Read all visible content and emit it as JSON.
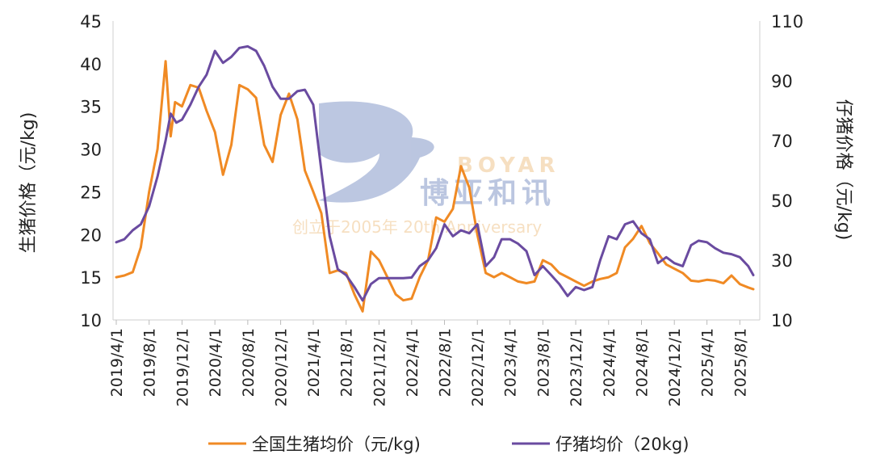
{
  "chart_data": {
    "type": "line",
    "x_start": "2019/4/1",
    "x_end": "2025/9/20",
    "x_ticks": [
      "2019/4/1",
      "2019/8/1",
      "2019/12/1",
      "2020/4/1",
      "2020/8/1",
      "2020/12/1",
      "2021/4/1",
      "2021/8/1",
      "2021/12/1",
      "2022/4/1",
      "2022/8/1",
      "2022/12/1",
      "2023/4/1",
      "2023/8/1",
      "2023/12/1",
      "2024/4/1",
      "2024/8/1",
      "2024/12/1",
      "2025/4/1",
      "2025/8/1"
    ],
    "y_left": {
      "label": "生猪价格（元/kg)",
      "lim": [
        10,
        45
      ],
      "ticks": [
        10,
        15,
        20,
        25,
        30,
        35,
        40,
        45
      ]
    },
    "y_right": {
      "label": "仔猪价格（元/kg)",
      "lim": [
        10,
        110
      ],
      "ticks": [
        10,
        30,
        50,
        70,
        90,
        110
      ]
    },
    "grid": false,
    "legend_position": "bottom",
    "series": [
      {
        "name": "全国生猪均价（元/kg)",
        "axis": "left",
        "color": "#f08a24",
        "points": [
          [
            "2019/4/1",
            15.0
          ],
          [
            "2019/5/1",
            15.2
          ],
          [
            "2019/6/1",
            15.6
          ],
          [
            "2019/7/1",
            18.5
          ],
          [
            "2019/8/1",
            25.0
          ],
          [
            "2019/9/1",
            30.0
          ],
          [
            "2019/10/1",
            40.3
          ],
          [
            "2019/10/20",
            31.5
          ],
          [
            "2019/11/5",
            35.5
          ],
          [
            "2019/12/1",
            35.0
          ],
          [
            "2020/1/1",
            37.5
          ],
          [
            "2020/2/1",
            37.2
          ],
          [
            "2020/3/1",
            34.5
          ],
          [
            "2020/4/1",
            32.0
          ],
          [
            "2020/5/1",
            27.0
          ],
          [
            "2020/6/1",
            30.5
          ],
          [
            "2020/7/1",
            37.5
          ],
          [
            "2020/8/1",
            37.0
          ],
          [
            "2020/9/1",
            36.0
          ],
          [
            "2020/10/1",
            30.5
          ],
          [
            "2020/11/1",
            28.5
          ],
          [
            "2020/12/1",
            34.0
          ],
          [
            "2021/1/1",
            36.5
          ],
          [
            "2021/2/1",
            33.5
          ],
          [
            "2021/3/1",
            27.5
          ],
          [
            "2021/4/1",
            25.0
          ],
          [
            "2021/5/1",
            22.5
          ],
          [
            "2021/6/1",
            15.5
          ],
          [
            "2021/7/1",
            15.8
          ],
          [
            "2021/8/1",
            15.5
          ],
          [
            "2021/9/1",
            13.0
          ],
          [
            "2021/10/1",
            11.0
          ],
          [
            "2021/11/1",
            18.0
          ],
          [
            "2021/12/1",
            17.0
          ],
          [
            "2022/1/1",
            15.0
          ],
          [
            "2022/2/1",
            13.0
          ],
          [
            "2022/3/1",
            12.3
          ],
          [
            "2022/4/1",
            12.5
          ],
          [
            "2022/5/1",
            15.0
          ],
          [
            "2022/6/1",
            17.0
          ],
          [
            "2022/7/1",
            22.0
          ],
          [
            "2022/8/1",
            21.5
          ],
          [
            "2022/9/1",
            23.0
          ],
          [
            "2022/10/1",
            28.0
          ],
          [
            "2022/11/1",
            25.5
          ],
          [
            "2022/12/1",
            20.0
          ],
          [
            "2023/1/1",
            15.5
          ],
          [
            "2023/2/1",
            15.0
          ],
          [
            "2023/3/1",
            15.5
          ],
          [
            "2023/4/1",
            15.0
          ],
          [
            "2023/5/1",
            14.5
          ],
          [
            "2023/6/1",
            14.3
          ],
          [
            "2023/7/1",
            14.5
          ],
          [
            "2023/8/1",
            17.0
          ],
          [
            "2023/9/1",
            16.5
          ],
          [
            "2023/10/1",
            15.5
          ],
          [
            "2023/11/1",
            15.0
          ],
          [
            "2023/12/1",
            14.5
          ],
          [
            "2024/1/1",
            14.0
          ],
          [
            "2024/2/1",
            14.5
          ],
          [
            "2024/3/1",
            14.8
          ],
          [
            "2024/4/1",
            15.0
          ],
          [
            "2024/5/1",
            15.5
          ],
          [
            "2024/6/1",
            18.5
          ],
          [
            "2024/7/1",
            19.5
          ],
          [
            "2024/8/1",
            21.0
          ],
          [
            "2024/9/1",
            19.0
          ],
          [
            "2024/10/1",
            17.8
          ],
          [
            "2024/11/1",
            16.5
          ],
          [
            "2024/12/1",
            16.0
          ],
          [
            "2025/1/1",
            15.5
          ],
          [
            "2025/2/1",
            14.6
          ],
          [
            "2025/3/1",
            14.5
          ],
          [
            "2025/4/1",
            14.7
          ],
          [
            "2025/5/1",
            14.6
          ],
          [
            "2025/6/1",
            14.3
          ],
          [
            "2025/7/1",
            15.2
          ],
          [
            "2025/8/1",
            14.2
          ],
          [
            "2025/9/1",
            13.8
          ],
          [
            "2025/9/20",
            13.6
          ]
        ]
      },
      {
        "name": "仔猪均价（20kg)",
        "axis": "right",
        "color": "#6a4ba0",
        "points": [
          [
            "2019/4/1",
            36.0
          ],
          [
            "2019/5/1",
            37.0
          ],
          [
            "2019/6/1",
            40.0
          ],
          [
            "2019/7/1",
            42.0
          ],
          [
            "2019/8/1",
            48.0
          ],
          [
            "2019/9/1",
            58.0
          ],
          [
            "2019/10/1",
            70.0
          ],
          [
            "2019/10/20",
            79.0
          ],
          [
            "2019/11/10",
            76.0
          ],
          [
            "2019/12/1",
            77.0
          ],
          [
            "2020/1/1",
            82.0
          ],
          [
            "2020/2/1",
            88.0
          ],
          [
            "2020/3/1",
            92.0
          ],
          [
            "2020/4/1",
            100.0
          ],
          [
            "2020/5/1",
            96.0
          ],
          [
            "2020/6/1",
            98.0
          ],
          [
            "2020/7/1",
            101.0
          ],
          [
            "2020/8/1",
            101.5
          ],
          [
            "2020/9/1",
            100.0
          ],
          [
            "2020/10/1",
            95.0
          ],
          [
            "2020/11/1",
            88.0
          ],
          [
            "2020/12/1",
            84.0
          ],
          [
            "2021/1/1",
            84.0
          ],
          [
            "2021/2/1",
            86.5
          ],
          [
            "2021/3/1",
            87.0
          ],
          [
            "2021/4/1",
            82.0
          ],
          [
            "2021/5/1",
            60.0
          ],
          [
            "2021/6/1",
            38.0
          ],
          [
            "2021/7/1",
            27.0
          ],
          [
            "2021/8/1",
            25.0
          ],
          [
            "2021/9/1",
            21.0
          ],
          [
            "2021/10/1",
            16.5
          ],
          [
            "2021/11/1",
            22.0
          ],
          [
            "2021/12/1",
            24.0
          ],
          [
            "2022/1/1",
            24.0
          ],
          [
            "2022/2/1",
            24.0
          ],
          [
            "2022/3/1",
            24.0
          ],
          [
            "2022/4/1",
            24.2
          ],
          [
            "2022/5/1",
            28.0
          ],
          [
            "2022/6/1",
            30.0
          ],
          [
            "2022/7/1",
            34.0
          ],
          [
            "2022/8/1",
            42.0
          ],
          [
            "2022/9/1",
            38.0
          ],
          [
            "2022/10/1",
            40.0
          ],
          [
            "2022/11/1",
            39.0
          ],
          [
            "2022/12/1",
            42.0
          ],
          [
            "2023/1/1",
            28.0
          ],
          [
            "2023/2/1",
            31.0
          ],
          [
            "2023/3/1",
            37.0
          ],
          [
            "2023/4/1",
            37.0
          ],
          [
            "2023/5/1",
            35.5
          ],
          [
            "2023/6/1",
            33.0
          ],
          [
            "2023/7/1",
            25.0
          ],
          [
            "2023/8/1",
            28.0
          ],
          [
            "2023/9/1",
            25.0
          ],
          [
            "2023/10/1",
            22.0
          ],
          [
            "2023/11/1",
            18.0
          ],
          [
            "2023/12/1",
            21.0
          ],
          [
            "2024/1/1",
            20.0
          ],
          [
            "2024/2/1",
            21.0
          ],
          [
            "2024/3/1",
            30.0
          ],
          [
            "2024/4/1",
            38.0
          ],
          [
            "2024/5/1",
            37.0
          ],
          [
            "2024/6/1",
            42.0
          ],
          [
            "2024/7/1",
            43.0
          ],
          [
            "2024/8/1",
            39.0
          ],
          [
            "2024/9/1",
            37.0
          ],
          [
            "2024/10/1",
            29.0
          ],
          [
            "2024/11/1",
            31.0
          ],
          [
            "2024/12/1",
            29.0
          ],
          [
            "2025/1/1",
            28.0
          ],
          [
            "2025/2/1",
            35.0
          ],
          [
            "2025/3/1",
            36.5
          ],
          [
            "2025/4/1",
            36.0
          ],
          [
            "2025/5/1",
            34.0
          ],
          [
            "2025/6/1",
            32.5
          ],
          [
            "2025/7/1",
            32.0
          ],
          [
            "2025/8/1",
            31.0
          ],
          [
            "2025/9/1",
            28.0
          ],
          [
            "2025/9/20",
            25.0
          ]
        ]
      }
    ]
  },
  "watermark": {
    "brand_en": "BOYAR",
    "brand_cn": "博亚和讯",
    "slogan": "创立于2005年 20th Anniversary",
    "color": "#3f5fa8"
  }
}
